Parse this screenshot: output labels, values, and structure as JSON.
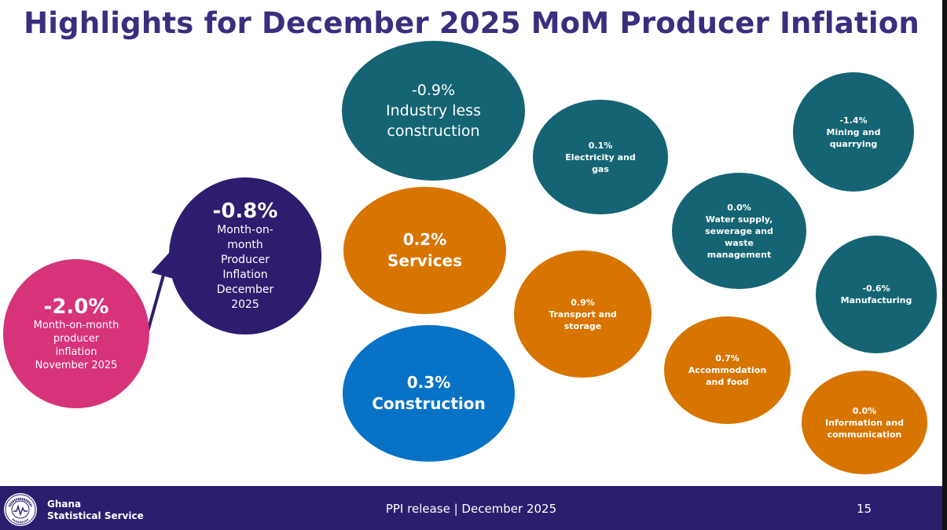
{
  "title": "Highlights for December 2025 MoM Producer Inflation",
  "colors": {
    "teal": "#156473",
    "orange": "#d77500",
    "blue": "#0872c6",
    "purple": "#2e1c6e",
    "pink": "#d6337a",
    "title": "#3b2e7e",
    "footer": "#2c1e6e"
  },
  "previous": {
    "value": "-2.0%",
    "label": [
      "Month-on-month",
      "producer",
      "inflation",
      "November 2025"
    ]
  },
  "current": {
    "value": "-0.8%",
    "label": [
      "Month-on-",
      "month",
      "Producer",
      "Inflation",
      "December",
      "2025"
    ]
  },
  "industry": {
    "value": "-0.9%",
    "label": [
      "Industry less",
      "construction"
    ]
  },
  "services": {
    "value": "0.2%",
    "label": "Services"
  },
  "construction": {
    "value": "0.3%",
    "label": "Construction"
  },
  "electricity": {
    "value": "0.1%",
    "label": [
      "Electricity and",
      "gas"
    ]
  },
  "mining": {
    "value": "-1.4%",
    "label": [
      "Mining and",
      "quarrying"
    ]
  },
  "water": {
    "value": "0.0%",
    "label": [
      "Water supply,",
      "sewerage and",
      "waste",
      "management"
    ]
  },
  "manufacturing": {
    "value": "-0.6%",
    "label": "Manufacturing"
  },
  "transport": {
    "value": "0.9%",
    "label": [
      "Transport and",
      "storage"
    ]
  },
  "accommodation": {
    "value": "0.7%",
    "label": [
      "Accommodation",
      "and food"
    ]
  },
  "information": {
    "value": "0.0%",
    "label": [
      "Information and",
      "communication"
    ]
  },
  "footer": {
    "org_line1": "Ghana",
    "org_line2": "Statistical Service",
    "release": "PPI release | December 2025",
    "page": "15",
    "logo_text_top": "STATISTICAL SERVICE",
    "logo_text_bottom": "GHANA"
  }
}
